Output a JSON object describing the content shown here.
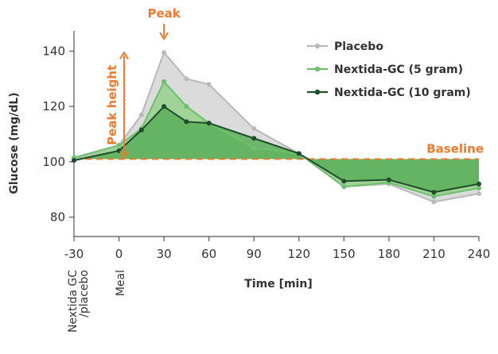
{
  "chart_data": {
    "type": "line",
    "xlabel": "Time [min]",
    "ylabel": "Glucose (mg/dL)",
    "xlim": [
      -30,
      240
    ],
    "ylim": [
      73,
      145
    ],
    "x_ticks": [
      "-30",
      "0",
      "30",
      "60",
      "90",
      "120",
      "150",
      "180",
      "210",
      "240"
    ],
    "y_ticks": [
      "80",
      "100",
      "120",
      "140"
    ],
    "x_tick_values": [
      -30,
      0,
      30,
      60,
      90,
      120,
      150,
      180,
      210,
      240
    ],
    "y_tick_values": [
      80,
      100,
      120,
      140
    ],
    "baseline": 101,
    "legend_position": "top-right",
    "series": [
      {
        "name": "Placebo",
        "color": "#B9B9B9",
        "fill": "#D9D9D9",
        "x": [
          -30,
          0,
          15,
          30,
          45,
          60,
          90,
          120,
          150,
          180,
          210,
          240
        ],
        "y": [
          101,
          106,
          117,
          139.5,
          130,
          128,
          112,
          103,
          91,
          92,
          85.5,
          88.5
        ]
      },
      {
        "name": "Nextida-GC (5 gram)",
        "color": "#6CC06C",
        "fill": "#96D08C",
        "x": [
          -30,
          0,
          15,
          30,
          45,
          60,
          90,
          120,
          150,
          180,
          210,
          240
        ],
        "y": [
          101.5,
          106,
          112,
          129,
          120,
          114,
          105,
          103,
          91,
          92.5,
          87.5,
          90.5
        ]
      },
      {
        "name": "Nextida-GC (10 gram)",
        "color": "#1E4D2B",
        "fill": "#5BAF5B",
        "x": [
          -30,
          0,
          15,
          30,
          45,
          60,
          90,
          120,
          150,
          180,
          210,
          240
        ],
        "y": [
          100.5,
          104,
          111.5,
          120,
          114.5,
          114,
          108.5,
          103,
          93,
          93.5,
          89,
          92
        ]
      }
    ]
  },
  "annotations": {
    "peak": "Peak",
    "peak_height": "Peak height",
    "baseline": "Baseline",
    "event_treatment": "Nextida GC",
    "event_treatment_2": "/placebo",
    "event_meal": "Meal"
  },
  "colors": {
    "accent": "#EE7A2E",
    "axis": "#555555",
    "text": "#333333"
  }
}
